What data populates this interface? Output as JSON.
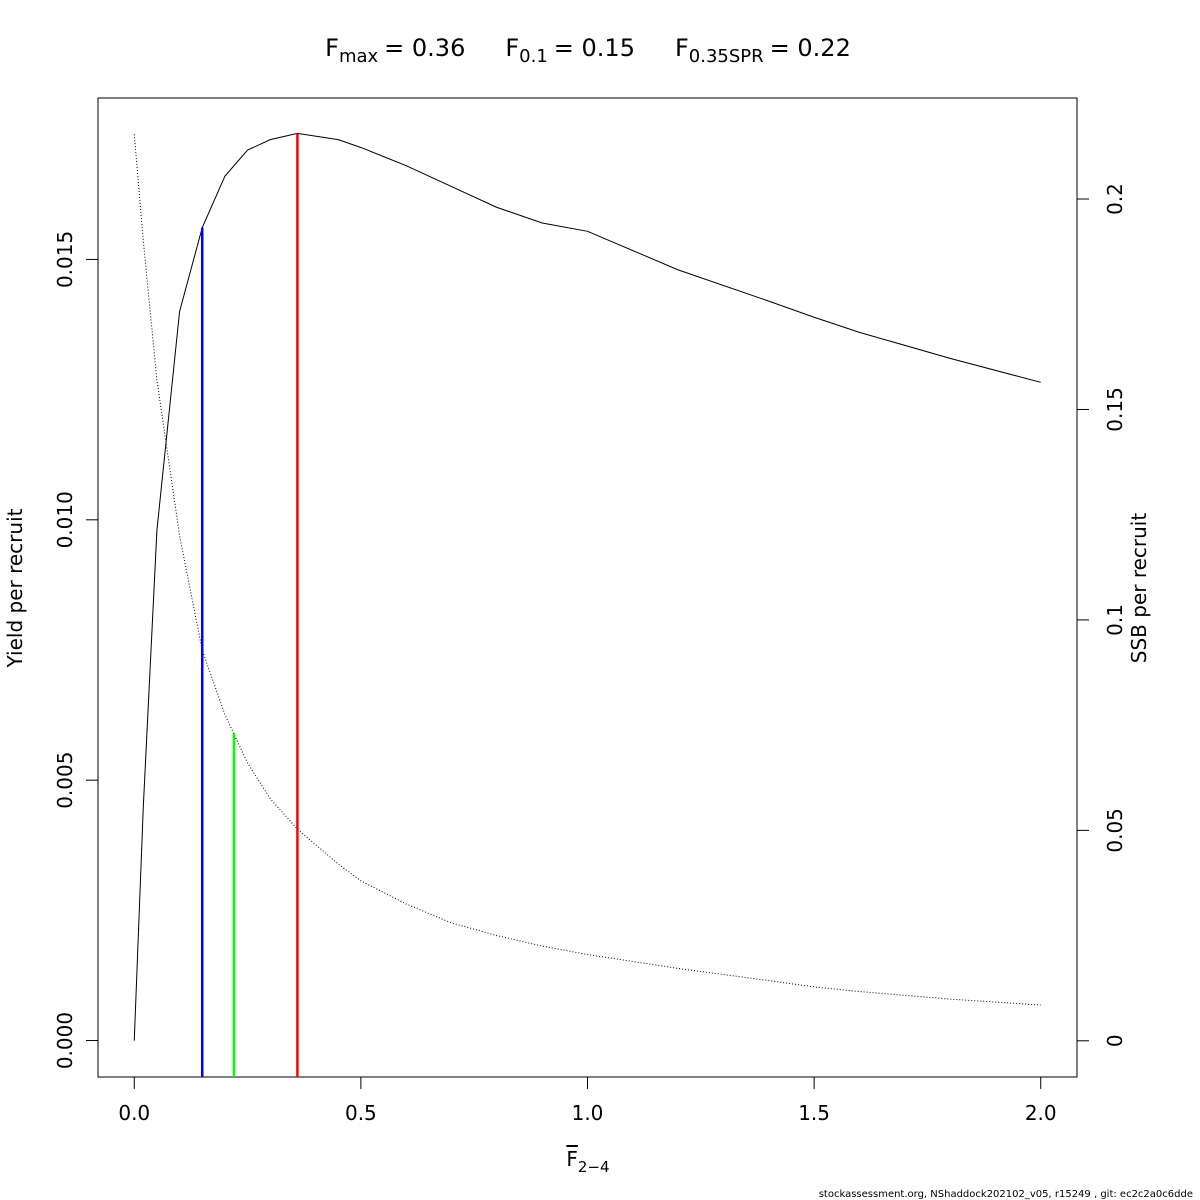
{
  "chart_data": {
    "type": "line",
    "reflines": [
      {
        "symbol": "F",
        "subscript": "max",
        "text": "= 0.36",
        "x": 0.36,
        "top": 0.01742,
        "axis": "y",
        "color": "#ff0000"
      },
      {
        "symbol": "F",
        "subscript": "0.1",
        "text": "= 0.15",
        "x": 0.15,
        "top": 0.01561,
        "axis": "y",
        "color": "#0000ff"
      },
      {
        "symbol": "F",
        "subscript": "0.35SPR",
        "text": "= 0.22",
        "x": 0.22,
        "top": 0.0731,
        "axis": "y2",
        "color": "#00ff00"
      }
    ],
    "x_label": {
      "symbol": "F",
      "subscript": "2−4"
    },
    "y_label": "Yield per recruit",
    "y2_label": "SSB per recruit",
    "footer": "stockassessment.org, NShaddock202102_v05, r15249 , git: ec2c2a0c6dde",
    "x": [
      0,
      0.02,
      0.05,
      0.1,
      0.15,
      0.2,
      0.25,
      0.3,
      0.36,
      0.45,
      0.5,
      0.6,
      0.7,
      0.8,
      0.9,
      1.0,
      1.2,
      1.4,
      1.5,
      1.6,
      1.8,
      2.0
    ],
    "series": [
      {
        "color": "#000000",
        "dash": "none",
        "axis": "y",
        "values": [
          0,
          0.0045,
          0.0098,
          0.014,
          0.01561,
          0.0166,
          0.0171,
          0.0173,
          0.01742,
          0.0173,
          0.01715,
          0.0168,
          0.0164,
          0.016,
          0.0157,
          0.01554,
          0.0148,
          0.0142,
          0.01389,
          0.0136,
          0.0131,
          0.01264
        ]
      },
      {
        "color": "#000000",
        "dash": "1 2",
        "axis": "y2",
        "values": [
          0.2154,
          0.19,
          0.157,
          0.12,
          0.0928,
          0.0775,
          0.066,
          0.0575,
          0.0503,
          0.042,
          0.038,
          0.0325,
          0.028,
          0.025,
          0.0225,
          0.0205,
          0.0172,
          0.0143,
          0.0128,
          0.0117,
          0.0099,
          0.0085
        ]
      }
    ],
    "xlim": [
      -0.08,
      2.08
    ],
    "ylim": [
      -0.0007,
      0.0181
    ],
    "y2lim": [
      -0.0086,
      0.224
    ],
    "xticks": [
      {
        "value": 0,
        "label": "0.0"
      },
      0.5,
      {
        "value": 1,
        "label": "1.0"
      },
      1.5,
      {
        "value": 2,
        "label": "2.0"
      }
    ],
    "yticks": [
      {
        "value": 0,
        "label": "0.000"
      },
      {
        "value": 0.005,
        "label": "0.005"
      },
      {
        "value": 0.01,
        "label": "0.010"
      },
      {
        "value": 0.015,
        "label": "0.015"
      }
    ],
    "y2ticks": [
      0,
      0.05,
      0.1,
      0.15,
      0.2
    ]
  }
}
